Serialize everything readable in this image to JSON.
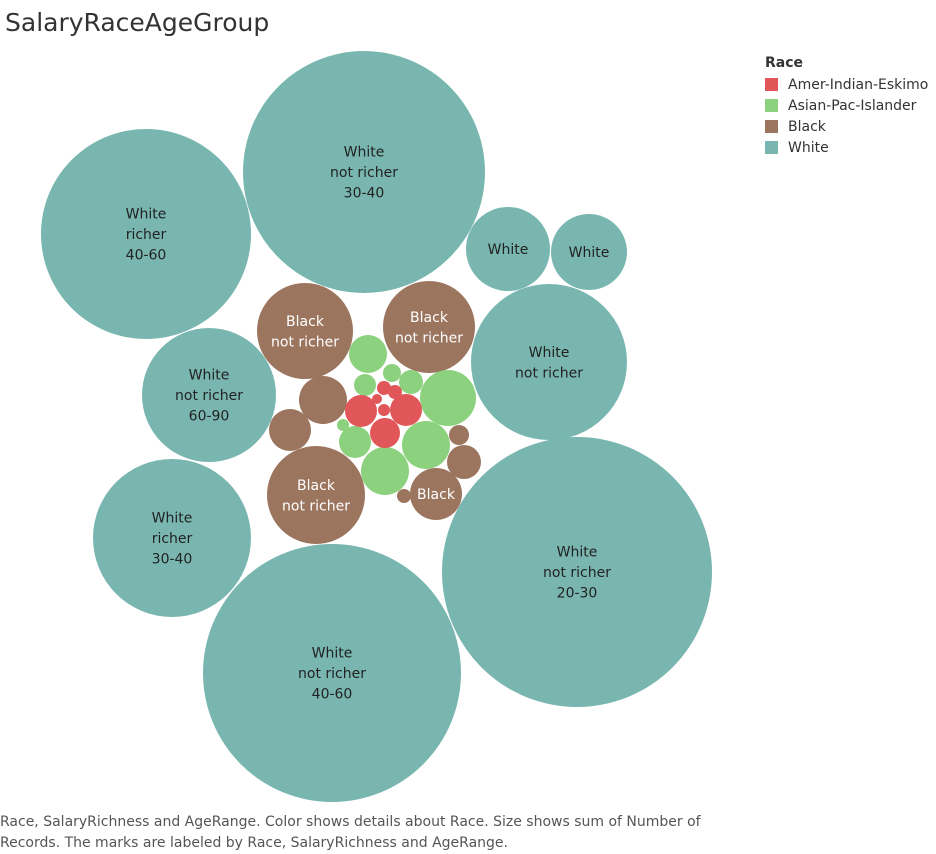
{
  "title": "SalaryRaceAgeGroup",
  "legend": {
    "title": "Race",
    "items": [
      {
        "label": "Amer-Indian-Eskimo",
        "color": "#e15759"
      },
      {
        "label": "Asian-Pac-Islander",
        "color": "#8cd17d"
      },
      {
        "label": "Black",
        "color": "#9c755f"
      },
      {
        "label": "White",
        "color": "#79b6b0"
      }
    ]
  },
  "caption": "Race, SalaryRichness and AgeRange.  Color shows details about Race.  Size shows sum of Number of Records.  The marks are labeled by Race, SalaryRichness and AgeRange.",
  "chart_data": {
    "type": "packed-bubble",
    "size_measure": "sum of Number of Records",
    "color_dimension": "Race",
    "bubbles": [
      {
        "race": "White",
        "label": [
          "White",
          "not richer",
          "30-40"
        ],
        "size_rank": 1
      },
      {
        "race": "White",
        "label": [
          "White",
          "not richer",
          "20-30"
        ],
        "size_rank": 2
      },
      {
        "race": "White",
        "label": [
          "White",
          "not richer",
          "40-60"
        ],
        "size_rank": 3
      },
      {
        "race": "White",
        "label": [
          "White",
          "richer",
          "40-60"
        ],
        "size_rank": 4
      },
      {
        "race": "White",
        "label": [
          "White",
          "not richer"
        ],
        "size_rank": 5
      },
      {
        "race": "White",
        "label": [
          "White",
          "richer",
          "30-40"
        ],
        "size_rank": 6
      },
      {
        "race": "White",
        "label": [
          "White",
          "not richer",
          "60-90"
        ],
        "size_rank": 7
      },
      {
        "race": "White",
        "label": [
          "White"
        ],
        "size_rank": 8
      },
      {
        "race": "White",
        "label": [
          "White"
        ],
        "size_rank": 9
      },
      {
        "race": "Black",
        "label": [
          "Black",
          "not richer"
        ],
        "size_rank": 10
      },
      {
        "race": "Black",
        "label": [
          "Black",
          "not richer"
        ],
        "size_rank": 11
      },
      {
        "race": "Black",
        "label": [
          "Black",
          "not richer"
        ],
        "size_rank": 12
      },
      {
        "race": "Black",
        "label": [
          "Black"
        ],
        "size_rank": 13
      },
      {
        "race": "Black",
        "label": [],
        "size_rank": 14
      },
      {
        "race": "Black",
        "label": [],
        "size_rank": 15
      },
      {
        "race": "Black",
        "label": [],
        "size_rank": 16
      },
      {
        "race": "Black",
        "label": [],
        "size_rank": 17
      },
      {
        "race": "Black",
        "label": [],
        "size_rank": 18
      },
      {
        "race": "Asian-Pac-Islander",
        "label": [],
        "size_rank": 19
      },
      {
        "race": "Asian-Pac-Islander",
        "label": [],
        "size_rank": 20
      },
      {
        "race": "Asian-Pac-Islander",
        "label": [],
        "size_rank": 21
      },
      {
        "race": "Asian-Pac-Islander",
        "label": [],
        "size_rank": 22
      },
      {
        "race": "Asian-Pac-Islander",
        "label": [],
        "size_rank": 23
      },
      {
        "race": "Asian-Pac-Islander",
        "label": [],
        "size_rank": 24
      },
      {
        "race": "Asian-Pac-Islander",
        "label": [],
        "size_rank": 25
      },
      {
        "race": "Asian-Pac-Islander",
        "label": [],
        "size_rank": 26
      },
      {
        "race": "Asian-Pac-Islander",
        "label": [],
        "size_rank": 27
      },
      {
        "race": "Amer-Indian-Eskimo",
        "label": [],
        "size_rank": 28
      },
      {
        "race": "Amer-Indian-Eskimo",
        "label": [],
        "size_rank": 29
      },
      {
        "race": "Amer-Indian-Eskimo",
        "label": [],
        "size_rank": 30
      },
      {
        "race": "Amer-Indian-Eskimo",
        "label": [],
        "size_rank": 31
      },
      {
        "race": "Amer-Indian-Eskimo",
        "label": [],
        "size_rank": 32
      },
      {
        "race": "Amer-Indian-Eskimo",
        "label": [],
        "size_rank": 33
      },
      {
        "race": "Amer-Indian-Eskimo",
        "label": [],
        "size_rank": 34
      }
    ]
  }
}
